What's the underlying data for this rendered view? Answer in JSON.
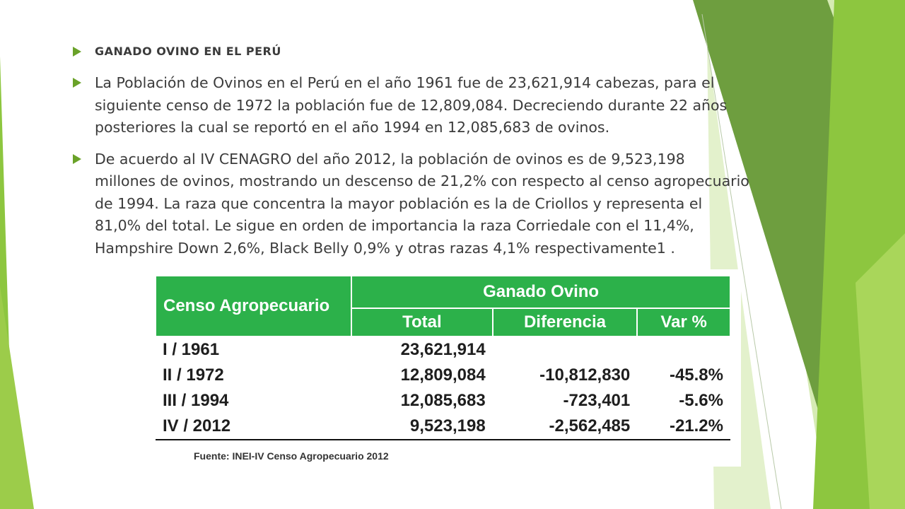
{
  "slide": {
    "title": "GANADO OVINO EN EL PERÚ",
    "paragraphs": [
      "La Población de Ovinos en el Perú en el año 1961 fue de 23,621,914 cabezas, para el siguiente censo de 1972 la población fue de 12,809,084. Decreciendo durante 22 años posteriores la cual se reportó en el año 1994 en 12,085,683 de ovinos.",
      "De acuerdo al IV CENAGRO del año 2012, la población de ovinos es de 9,523,198 millones de ovinos, mostrando un descenso de 21,2% con respecto al censo agropecuario de 1994. La raza que concentra la mayor población es la de Criollos y representa el 81,0% del total. Le sigue en orden de importancia la raza Corriedale con el 11,4%, Hampshire Down 2,6%, Black Belly 0,9% y otras razas 4,1% respectivamente1 ."
    ]
  },
  "table": {
    "col_header_left": "Censo Agropecuario",
    "group_header": "Ganado Ovino",
    "sub_headers": [
      "Total",
      "Diferencia",
      "Var %"
    ],
    "rows": [
      {
        "censo": "I / 1961",
        "total": "23,621,914",
        "diferencia": "",
        "var": ""
      },
      {
        "censo": "II / 1972",
        "total": "12,809,084",
        "diferencia": "-10,812,830",
        "var": "-45.8%"
      },
      {
        "censo": "III / 1994",
        "total": "12,085,683",
        "diferencia": "-723,401",
        "var": "-5.6%"
      },
      {
        "censo": "IV / 2012",
        "total": "9,523,198",
        "diferencia": "-2,562,485",
        "var": "-21.2%"
      }
    ],
    "source": "Fuente: INEI-IV Censo Agropecuario 2012"
  },
  "colors": {
    "accent": "#6aa229",
    "table_header": "#2cb14a",
    "decor_light": "#c5e39a",
    "decor_mid": "#9ccc4a",
    "decor_dark": "#5f9a32"
  }
}
